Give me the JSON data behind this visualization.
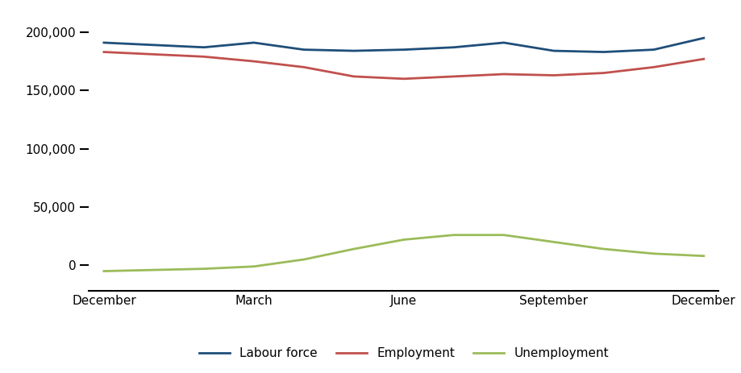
{
  "x_labels": [
    "December",
    "March",
    "June",
    "September",
    "December"
  ],
  "x_positions": [
    0,
    3,
    6,
    9,
    12
  ],
  "labour_force": [
    191000,
    189000,
    187000,
    191000,
    185000,
    184000,
    185000,
    187000,
    191000,
    184000,
    183000,
    185000,
    195000
  ],
  "employment": [
    183000,
    181000,
    179000,
    175000,
    170000,
    162000,
    160000,
    162000,
    164000,
    163000,
    165000,
    170000,
    177000
  ],
  "unemployment": [
    -5000,
    -4000,
    -3000,
    -1000,
    5000,
    14000,
    22000,
    26000,
    26000,
    20000,
    14000,
    10000,
    8000
  ],
  "x_data": [
    0,
    1,
    2,
    3,
    4,
    5,
    6,
    7,
    8,
    9,
    10,
    11,
    12
  ],
  "labour_force_color": "#1F4E79",
  "employment_color": "#C0504D",
  "unemployment_color": "#9BBB59",
  "ylim": [
    -22000,
    218000
  ],
  "yticks": [
    0,
    50000,
    100000,
    150000,
    200000
  ],
  "ytick_labels": [
    "0",
    "50,000",
    "100,000",
    "150,000",
    "200,000"
  ],
  "legend_labels": [
    "Labour force",
    "Employment",
    "Unemployment"
  ],
  "line_width": 2.0,
  "background_color": "#ffffff",
  "tick_color": "#000000",
  "font_size": 11
}
